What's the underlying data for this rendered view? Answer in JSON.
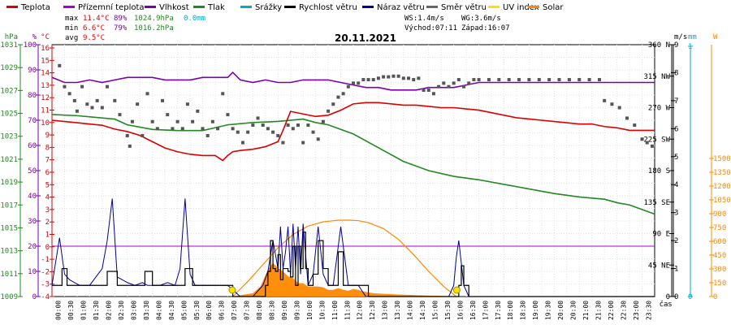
{
  "legend": [
    {
      "label": "Teplota",
      "color": "#dd0000"
    },
    {
      "label": "Přízemní teplota",
      "color": "#aa00cc"
    },
    {
      "label": "Vlhkost",
      "color": "#7a00aa"
    },
    {
      "label": "Tlak",
      "color": "#228822"
    },
    {
      "label": "Srážky",
      "color": "#00aacc"
    },
    {
      "label": "Rychlost větru",
      "color": "#000000"
    },
    {
      "label": "Náraz větru",
      "color": "#000099"
    },
    {
      "label": "Směr větru",
      "color": "#666666"
    },
    {
      "label": "UV index",
      "color": "#ffdd00"
    },
    {
      "label": "Solar",
      "color": "#ff8800"
    }
  ],
  "stats": {
    "max_label": "max",
    "max_temp": "11.4°C",
    "max_hum": "89%",
    "max_press": "1024.9hPa",
    "max_rain": "0.0mm",
    "min_label": "min",
    "min_temp": "6.6°C",
    "min_hum": "79%",
    "min_press": "1016.2hPa",
    "avg_label": "avg",
    "avg_temp": "9.5°C",
    "ws": "WS:1.4m/s",
    "wg": "WG:3.6m/s",
    "sunrise": "Východ:07:11",
    "sunset": "Západ:16:07"
  },
  "chart_data": {
    "type": "line",
    "title": "20.11.2021",
    "x_unit_label": "čas",
    "x_ticks": [
      "00:00",
      "00:30",
      "01:00",
      "01:30",
      "02:00",
      "02:30",
      "03:00",
      "03:30",
      "04:00",
      "04:30",
      "05:00",
      "05:30",
      "06:00",
      "06:30",
      "07:00",
      "07:30",
      "08:00",
      "08:30",
      "09:00",
      "09:30",
      "10:00",
      "10:30",
      "11:00",
      "11:30",
      "12:00",
      "12:30",
      "13:00",
      "13:30",
      "14:00",
      "14:30",
      "15:00",
      "15:30",
      "16:00",
      "16:30",
      "17:00",
      "17:30",
      "18:00",
      "18:30",
      "19:00",
      "19:30",
      "20:00",
      "20:30",
      "21:00",
      "21:30",
      "22:00",
      "22:30",
      "23:00",
      "23:30"
    ],
    "axes": {
      "pressure": {
        "label": "hPa",
        "color": "#228822",
        "ticks": [
          "1031",
          "1029",
          "1027",
          "1025",
          "1023",
          "1021",
          "1019",
          "1017",
          "1015",
          "1013",
          "1011",
          "1009"
        ]
      },
      "humidity": {
        "label": "%",
        "color": "#7a00aa",
        "ticks": [
          "100",
          "90",
          "80",
          "70",
          "60",
          "50",
          "40",
          "30",
          "20",
          "10",
          "0"
        ]
      },
      "temperature": {
        "label": "°C",
        "color": "#dd0000",
        "ticks": [
          "16",
          "15",
          "14",
          "13",
          "12",
          "11",
          "10",
          "9",
          "8",
          "7",
          "6",
          "5",
          "4",
          "3",
          "2",
          "1",
          "0",
          "-1",
          "-2",
          "-3",
          "-4"
        ]
      },
      "direction": {
        "label": "",
        "color": "#000000",
        "ticks": [
          "360 N",
          "315 NW",
          "270 W",
          "225 SW",
          "180 S",
          "135 SE",
          "90 E",
          "45 NE",
          "0"
        ]
      },
      "wind": {
        "label": "m/s",
        "color": "#000000",
        "ticks": [
          "9",
          "8",
          "7",
          "6",
          "5",
          "4",
          "3",
          "2",
          "1",
          "0"
        ]
      },
      "rain": {
        "label": "mm",
        "color": "#00aacc",
        "ticks": [
          "1",
          "0"
        ]
      },
      "solar": {
        "label": "W",
        "color": "#ff8800",
        "ticks": [
          "1500",
          "1350",
          "1200",
          "1050",
          "900",
          "750",
          "600",
          "450",
          "300",
          "150",
          "0"
        ]
      }
    },
    "series": [
      {
        "name": "Teplota",
        "axis": "temperature",
        "color": "#dd0000",
        "x": [
          0,
          0.5,
          1,
          1.5,
          2,
          2.5,
          3,
          3.5,
          4,
          4.5,
          5,
          5.5,
          6,
          6.5,
          6.8,
          7,
          7.2,
          7.5,
          8,
          8.5,
          9,
          9.2,
          9.5,
          10,
          10.5,
          11,
          11.5,
          12,
          12.5,
          13,
          13.5,
          14,
          14.5,
          15,
          15.5,
          16,
          16.5,
          17,
          17.5,
          18,
          18.5,
          19,
          19.5,
          20,
          20.5,
          21,
          21.5,
          22,
          22.5,
          23,
          23.5,
          24
        ],
        "y": [
          10,
          9.9,
          9.8,
          9.7,
          9.6,
          9.3,
          9.1,
          8.8,
          8.3,
          7.8,
          7.5,
          7.3,
          7.2,
          7.2,
          6.8,
          7.2,
          7.5,
          7.6,
          7.7,
          7.9,
          8.3,
          9.2,
          10.7,
          10.5,
          10.3,
          10.4,
          10.8,
          11.3,
          11.4,
          11.4,
          11.3,
          11.2,
          11.2,
          11.1,
          11.0,
          11.0,
          10.9,
          10.8,
          10.6,
          10.4,
          10.2,
          10.1,
          10.0,
          9.9,
          9.8,
          9.7,
          9.7,
          9.5,
          9.4,
          9.2,
          9.2,
          9.2
        ]
      },
      {
        "name": "Vlhkost",
        "axis": "humidity",
        "color": "#7a00aa",
        "x": [
          0,
          0.5,
          1,
          1.5,
          2,
          2.5,
          3,
          3.5,
          4,
          4.5,
          5,
          5.5,
          6,
          6.5,
          7,
          7.2,
          7.5,
          8,
          8.5,
          9,
          9.5,
          10,
          10.5,
          11,
          11.5,
          12,
          12.5,
          13,
          13.5,
          14,
          14.5,
          15,
          15.5,
          16,
          16.5,
          17,
          18,
          19,
          20,
          21,
          22,
          23,
          24
        ],
        "y": [
          87,
          85,
          85,
          86,
          85,
          86,
          87,
          87,
          87,
          86,
          86,
          86,
          87,
          87,
          87,
          89,
          86,
          85,
          86,
          85,
          85,
          86,
          86,
          86,
          85,
          84,
          83,
          83,
          82,
          82,
          82,
          83,
          83,
          83,
          84,
          85,
          85,
          85,
          85,
          85,
          85,
          85,
          85
        ]
      },
      {
        "name": "Tlak",
        "axis": "pressure",
        "color": "#228822",
        "x": [
          0,
          1,
          2,
          2.5,
          3,
          4,
          5,
          6,
          7,
          8,
          9,
          10,
          10.5,
          11,
          12,
          13,
          14,
          15,
          16,
          17,
          18,
          19,
          20,
          21,
          22,
          22.5,
          23,
          23.5,
          24
        ],
        "y": [
          1024.9,
          1024.8,
          1024.6,
          1024.5,
          1024.0,
          1023.6,
          1023.5,
          1023.5,
          1024.0,
          1024.2,
          1024.3,
          1024.5,
          1024.2,
          1024.0,
          1023.2,
          1022.0,
          1020.8,
          1020.0,
          1019.5,
          1019.2,
          1018.8,
          1018.4,
          1018.0,
          1017.7,
          1017.5,
          1017.2,
          1017.0,
          1016.6,
          1016.2
        ]
      },
      {
        "name": "Rychlost větru",
        "axis": "wind",
        "color": "#000000",
        "step": true,
        "x": [
          0,
          0.4,
          0.6,
          0.9,
          1.1,
          1.5,
          1.8,
          2.0,
          2.2,
          2.6,
          3.0,
          3.4,
          3.7,
          4.0,
          4.4,
          4.7,
          5.0,
          5.3,
          5.6,
          5.9,
          6.2,
          6.5,
          6.9,
          7.2,
          7.5,
          7.9,
          8.2,
          8.5,
          8.6,
          8.7,
          8.8,
          8.9,
          9.0,
          9.1,
          9.2,
          9.4,
          9.5,
          9.6,
          9.7,
          9.8,
          9.9,
          10.0,
          10.1,
          10.2,
          10.4,
          10.6,
          10.8,
          11.0,
          11.2,
          11.4,
          11.6,
          11.8,
          12.0,
          12.2,
          12.4,
          12.6,
          12.8,
          13.0,
          13.4,
          13.8,
          14.2,
          14.8,
          15.2,
          15.6,
          16.0,
          16.2,
          16.3,
          16.4,
          16.6,
          16.8,
          17,
          24
        ],
        "y": [
          0.4,
          1.0,
          0.4,
          0.4,
          0.4,
          0.4,
          0.4,
          0.4,
          0.9,
          0.4,
          0.4,
          0.4,
          0.9,
          0.4,
          0.4,
          0.4,
          0.4,
          1.0,
          0.4,
          0.4,
          0.4,
          0.4,
          0.4,
          0,
          0,
          0,
          0,
          0.4,
          0.9,
          2.0,
          1.0,
          0.9,
          1.5,
          0.6,
          1.0,
          0.9,
          0.7,
          1.8,
          0.4,
          1.8,
          1.0,
          2.3,
          1.0,
          0.4,
          0.8,
          2.0,
          1.0,
          0.4,
          0.4,
          1.6,
          0.4,
          0.4,
          0.4,
          0.4,
          0.4,
          0,
          0,
          0,
          0,
          0,
          0,
          0,
          0,
          0,
          0,
          0.4,
          1.1,
          0.4,
          0,
          0,
          0,
          0
        ]
      },
      {
        "name": "Náraz větru",
        "axis": "wind",
        "color": "#000099",
        "x": [
          0,
          0.3,
          0.5,
          0.7,
          0.9,
          1.1,
          1.5,
          2.0,
          2.2,
          2.4,
          2.6,
          2.8,
          3.0,
          3.3,
          3.6,
          3.8,
          4.0,
          4.3,
          4.6,
          4.9,
          5.1,
          5.3,
          5.5,
          5.7,
          6.0,
          6.5,
          7.0,
          7.5,
          8.0,
          8.4,
          8.6,
          8.8,
          8.9,
          9.0,
          9.1,
          9.2,
          9.3,
          9.4,
          9.5,
          9.6,
          9.7,
          9.8,
          9.9,
          10.0,
          10.1,
          10.2,
          10.4,
          10.6,
          10.8,
          11.0,
          11.2,
          11.5,
          11.8,
          12.0,
          12.2,
          12.5,
          12.8,
          13,
          15.6,
          15.8,
          16.0,
          16.1,
          16.2,
          16.3,
          16.4,
          16.6,
          16.8,
          17,
          24
        ],
        "y": [
          0.4,
          2.1,
          0.8,
          0.6,
          0.5,
          0.4,
          0.4,
          1.0,
          2.0,
          3.5,
          0.7,
          0.6,
          0.5,
          0.4,
          0.5,
          0.4,
          0.4,
          0.4,
          0.5,
          0.4,
          1.0,
          3.5,
          0.8,
          0.4,
          0.4,
          0.4,
          0.4,
          0,
          0,
          0.4,
          0.9,
          2.0,
          1.5,
          1.0,
          2.5,
          1.0,
          1.6,
          2.5,
          0.8,
          2.6,
          1.0,
          2.5,
          0.8,
          2.6,
          1.5,
          0.4,
          0.8,
          2.5,
          0.8,
          0.4,
          0.4,
          2.5,
          0.4,
          0.4,
          0.4,
          0,
          0,
          0,
          0,
          0,
          0.4,
          1.4,
          2.0,
          1.2,
          0.4,
          0,
          0,
          0,
          0
        ]
      },
      {
        "name": "Solar",
        "axis": "solar",
        "color": "#ff8800",
        "type": "area",
        "x": [
          7.2,
          7.6,
          8.0,
          8.3,
          8.6,
          8.8,
          9.0,
          9.2,
          9.4,
          9.6,
          9.8,
          10.0,
          10.2,
          10.4,
          10.6,
          10.8,
          11.0,
          11.2,
          11.4,
          11.6,
          11.8,
          12.0,
          12.2,
          12.4,
          12.6,
          12.8,
          13.0,
          13.4,
          13.8,
          14.2,
          14.6,
          15.0,
          15.4,
          15.8,
          16.0,
          16.1
        ],
        "y": [
          0,
          10,
          20,
          60,
          160,
          200,
          170,
          150,
          120,
          110,
          80,
          80,
          60,
          60,
          60,
          55,
          40,
          40,
          50,
          40,
          35,
          45,
          40,
          30,
          25,
          20,
          18,
          15,
          12,
          10,
          8,
          6,
          5,
          3,
          2,
          0
        ]
      },
      {
        "name": "Solar theoretical",
        "axis": "solar",
        "color": "#ff8800",
        "type": "curve",
        "x": [
          7.2,
          7.8,
          8.4,
          9.0,
          9.6,
          10.2,
          10.8,
          11.4,
          11.8,
          12.2,
          12.6,
          13.2,
          13.8,
          14.4,
          15.0,
          15.6,
          16.1
        ],
        "y": [
          0,
          90,
          190,
          290,
          370,
          420,
          445,
          455,
          455,
          452,
          440,
          405,
          340,
          250,
          150,
          60,
          0
        ]
      },
      {
        "name": "Směr větru",
        "axis": "direction",
        "color": "#555555",
        "type": "scatter",
        "x": [
          0.3,
          0.5,
          0.7,
          0.9,
          1.0,
          1.2,
          1.4,
          1.6,
          1.8,
          2.0,
          2.2,
          2.5,
          2.7,
          3.0,
          3.1,
          3.2,
          3.4,
          3.6,
          3.8,
          4.0,
          4.2,
          4.4,
          4.6,
          4.8,
          5.0,
          5.2,
          5.4,
          5.6,
          5.8,
          6.0,
          6.2,
          6.4,
          6.6,
          6.8,
          7.0,
          7.2,
          7.4,
          7.6,
          7.8,
          8.0,
          8.2,
          8.4,
          8.6,
          8.8,
          9.0,
          9.2,
          9.4,
          9.6,
          9.8,
          10.0,
          10.2,
          10.4,
          10.6,
          10.8,
          11.0,
          11.2,
          11.4,
          11.6,
          11.8,
          12.0,
          12.2,
          12.4,
          12.6,
          12.8,
          13.0,
          13.2,
          13.4,
          13.6,
          13.8,
          14.0,
          14.2,
          14.4,
          14.6,
          14.8,
          15.0,
          15.2,
          15.4,
          15.6,
          15.8,
          16.0,
          16.2,
          16.4,
          16.6,
          16.8,
          17.0,
          17.4,
          17.8,
          18.2,
          18.6,
          19.0,
          19.4,
          19.8,
          20.2,
          20.6,
          21.0,
          21.4,
          21.8,
          22.0,
          22.3,
          22.6,
          22.9,
          23.2,
          23.5,
          23.7,
          23.9
        ],
        "y": [
          330,
          300,
          290,
          280,
          265,
          300,
          275,
          270,
          280,
          270,
          300,
          280,
          260,
          230,
          215,
          250,
          275,
          230,
          290,
          250,
          240,
          280,
          260,
          240,
          250,
          240,
          275,
          250,
          265,
          240,
          230,
          250,
          240,
          290,
          260,
          240,
          235,
          220,
          235,
          245,
          255,
          245,
          240,
          235,
          230,
          220,
          245,
          240,
          245,
          220,
          245,
          235,
          225,
          250,
          265,
          275,
          285,
          290,
          300,
          305,
          305,
          310,
          310,
          310,
          312,
          314,
          314,
          315,
          315,
          312,
          312,
          310,
          312,
          295,
          295,
          290,
          300,
          305,
          300,
          305,
          310,
          300,
          305,
          310,
          310,
          310,
          310,
          310,
          310,
          310,
          310,
          310,
          310,
          310,
          310,
          310,
          310,
          280,
          275,
          270,
          255,
          245,
          225,
          220,
          215
        ]
      }
    ]
  }
}
